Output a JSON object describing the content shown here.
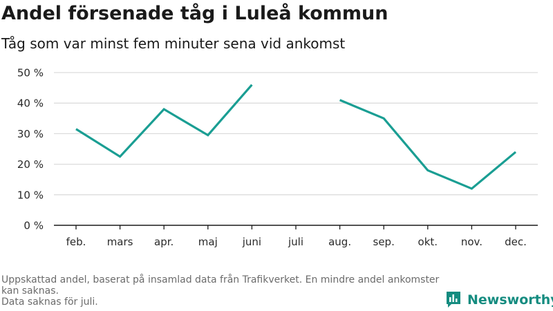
{
  "title": "Andel försenade tåg i Luleå kommun",
  "subtitle": "Tåg som var minst fem minuter sena vid ankomst",
  "footnote": {
    "line1": "Uppskattad andel, baserat på insamlad data från Trafikverket. En mindre andel ankomster kan saknas.",
    "line2": "Data saknas för juli."
  },
  "logo": {
    "text": "Newsworthy",
    "icon": "bar-chart-badge-icon"
  },
  "colors": {
    "line": "#1a9e93",
    "grid": "#dcdcdc",
    "axis": "#1a1a1a",
    "brand": "#158c80"
  },
  "chart_data": {
    "type": "line",
    "title": "Andel försenade tåg i Luleå kommun",
    "subtitle": "Tåg som var minst fem minuter sena vid ankomst",
    "xlabel": "",
    "ylabel": "",
    "categories": [
      "feb.",
      "mars",
      "apr.",
      "maj",
      "juni",
      "juli",
      "aug.",
      "sep.",
      "okt.",
      "nov.",
      "dec."
    ],
    "series": [
      {
        "values": [
          31.5,
          22.5,
          38,
          29.5,
          46,
          null,
          41,
          35,
          18,
          12,
          24
        ]
      }
    ],
    "ylim": [
      0,
      50
    ],
    "yticks": [
      0,
      10,
      20,
      30,
      40,
      50
    ],
    "ytick_labels": [
      "0 %",
      "10 %",
      "20 %",
      "30 %",
      "40 %",
      "50 %"
    ],
    "grid": true,
    "legend": "none"
  }
}
